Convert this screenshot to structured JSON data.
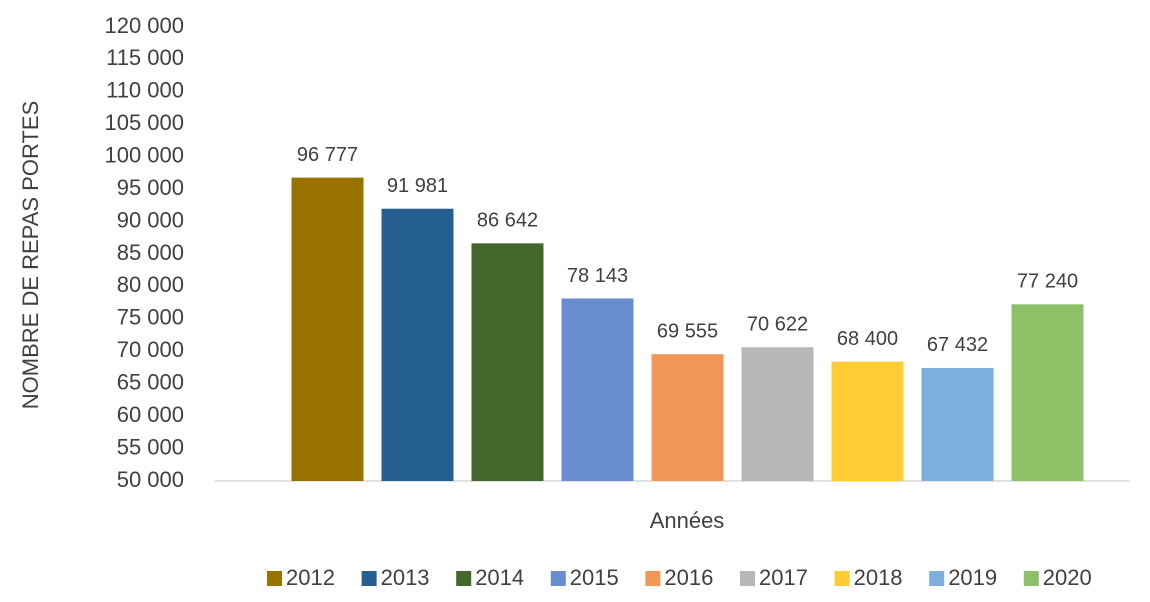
{
  "chart_data": {
    "type": "bar",
    "x_label": "Années",
    "y_label": "NOMBRE DE REPAS PORTES",
    "categories": [
      null
    ],
    "series": [
      {
        "name": "2012",
        "color": "#997300",
        "values": [
          96777
        ],
        "value_labels": [
          "96 777"
        ]
      },
      {
        "name": "2013",
        "color": "#255e91",
        "values": [
          91981
        ],
        "value_labels": [
          "91 981"
        ]
      },
      {
        "name": "2014",
        "color": "#43682b",
        "values": [
          86642
        ],
        "value_labels": [
          "86 642"
        ]
      },
      {
        "name": "2015",
        "color": "#698ed0",
        "values": [
          78143
        ],
        "value_labels": [
          "78 143"
        ]
      },
      {
        "name": "2016",
        "color": "#f1975a",
        "values": [
          69555
        ],
        "value_labels": [
          "69 555"
        ]
      },
      {
        "name": "2017",
        "color": "#b7b7b7",
        "values": [
          70622
        ],
        "value_labels": [
          "70 622"
        ]
      },
      {
        "name": "2018",
        "color": "#ffcd33",
        "values": [
          68400
        ],
        "value_labels": [
          "68 400"
        ]
      },
      {
        "name": "2019",
        "color": "#7cafdd",
        "values": [
          67432
        ],
        "value_labels": [
          "67 432"
        ]
      },
      {
        "name": "2020",
        "color": "#8cc168",
        "values": [
          77240
        ],
        "value_labels": [
          "77 240"
        ]
      }
    ],
    "ylim": [
      50000,
      120000
    ],
    "yticks": [
      {
        "value": 50000,
        "label": "50 000"
      },
      {
        "value": 55000,
        "label": "55 000"
      },
      {
        "value": 60000,
        "label": "60 000"
      },
      {
        "value": 65000,
        "label": "65 000"
      },
      {
        "value": 70000,
        "label": "70 000"
      },
      {
        "value": 75000,
        "label": "75 000"
      },
      {
        "value": 80000,
        "label": "80 000"
      },
      {
        "value": 85000,
        "label": "85 000"
      },
      {
        "value": 90000,
        "label": "90 000"
      },
      {
        "value": 95000,
        "label": "95 000"
      },
      {
        "value": 100000,
        "label": "100 000"
      },
      {
        "value": 105000,
        "label": "105 000"
      },
      {
        "value": 110000,
        "label": "110 000"
      },
      {
        "value": 115000,
        "label": "115 000"
      },
      {
        "value": 120000,
        "label": "120 000"
      }
    ],
    "grid": false,
    "legend": "bottom"
  }
}
